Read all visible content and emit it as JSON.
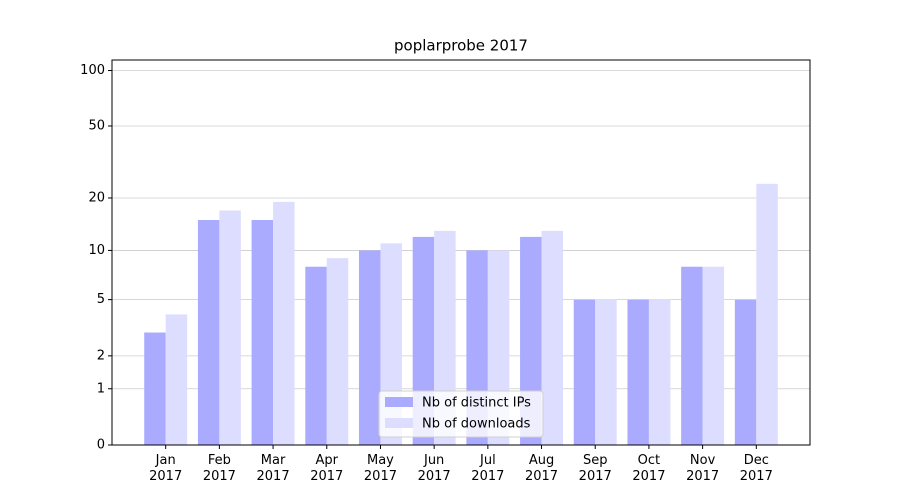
{
  "chart_data": {
    "type": "bar",
    "title": "poplarprobe 2017",
    "categories": [
      "Jan\n2017",
      "Feb\n2017",
      "Mar\n2017",
      "Apr\n2017",
      "May\n2017",
      "Jun\n2017",
      "Jul\n2017",
      "Aug\n2017",
      "Sep\n2017",
      "Oct\n2017",
      "Nov\n2017",
      "Dec\n2017"
    ],
    "series": [
      {
        "name": "Nb of distinct IPs",
        "color": "#aaaaff",
        "values": [
          3,
          15,
          15,
          8,
          10,
          12,
          10,
          12,
          5,
          5,
          8,
          5
        ]
      },
      {
        "name": "Nb of downloads",
        "color": "#ddddff",
        "values": [
          4,
          17,
          19,
          9,
          11,
          13,
          10,
          13,
          5,
          5,
          8,
          24
        ]
      }
    ],
    "yscale": "log1p",
    "ylim": [
      0,
      114
    ],
    "yticks": [
      0,
      1,
      2,
      5,
      10,
      20,
      50,
      100
    ],
    "grid": true,
    "legend": "lower center"
  }
}
